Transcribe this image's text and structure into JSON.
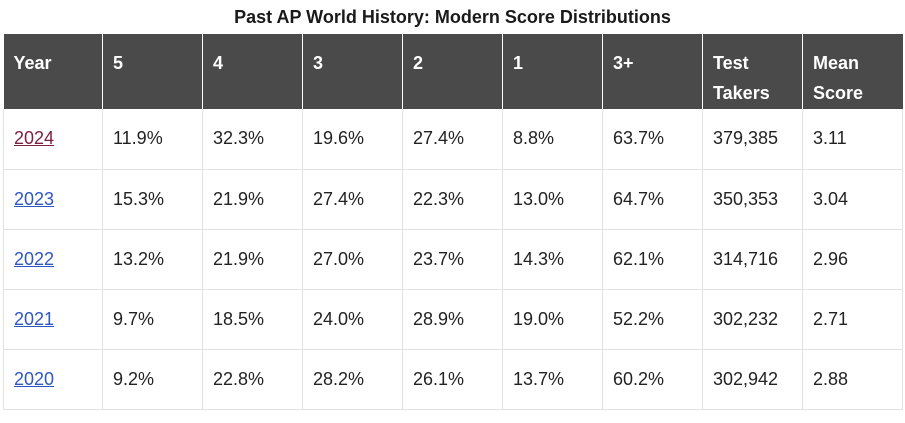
{
  "title": "Past AP World History: Modern Score Distributions",
  "headers": [
    "Year",
    "5",
    "4",
    "3",
    "2",
    "1",
    "3+",
    "Test Takers",
    "Mean Score"
  ],
  "rows": [
    {
      "year": "2024",
      "s5": "11.9%",
      "s4": "32.3%",
      "s3": "19.6%",
      "s2": "27.4%",
      "s1": "8.8%",
      "s3plus": "63.7%",
      "takers": "379,385",
      "mean": "3.11"
    },
    {
      "year": "2023",
      "s5": "15.3%",
      "s4": "21.9%",
      "s3": "27.4%",
      "s2": "22.3%",
      "s1": "13.0%",
      "s3plus": "64.7%",
      "takers": "350,353",
      "mean": "3.04"
    },
    {
      "year": "2022",
      "s5": "13.2%",
      "s4": "21.9%",
      "s3": "27.0%",
      "s2": "23.7%",
      "s1": "14.3%",
      "s3plus": "62.1%",
      "takers": "314,716",
      "mean": "2.96"
    },
    {
      "year": "2021",
      "s5": "9.7%",
      "s4": "18.5%",
      "s3": "24.0%",
      "s2": "28.9%",
      "s1": "19.0%",
      "s3plus": "52.2%",
      "takers": "302,232",
      "mean": "2.71"
    },
    {
      "year": "2020",
      "s5": "9.2%",
      "s4": "22.8%",
      "s3": "28.2%",
      "s2": "26.1%",
      "s1": "13.7%",
      "s3plus": "60.2%",
      "takers": "302,942",
      "mean": "2.88"
    }
  ],
  "colors": {
    "header_bg": "#4a4a4a",
    "link": "#2f57c4",
    "link_visited": "#7a1f3d"
  }
}
